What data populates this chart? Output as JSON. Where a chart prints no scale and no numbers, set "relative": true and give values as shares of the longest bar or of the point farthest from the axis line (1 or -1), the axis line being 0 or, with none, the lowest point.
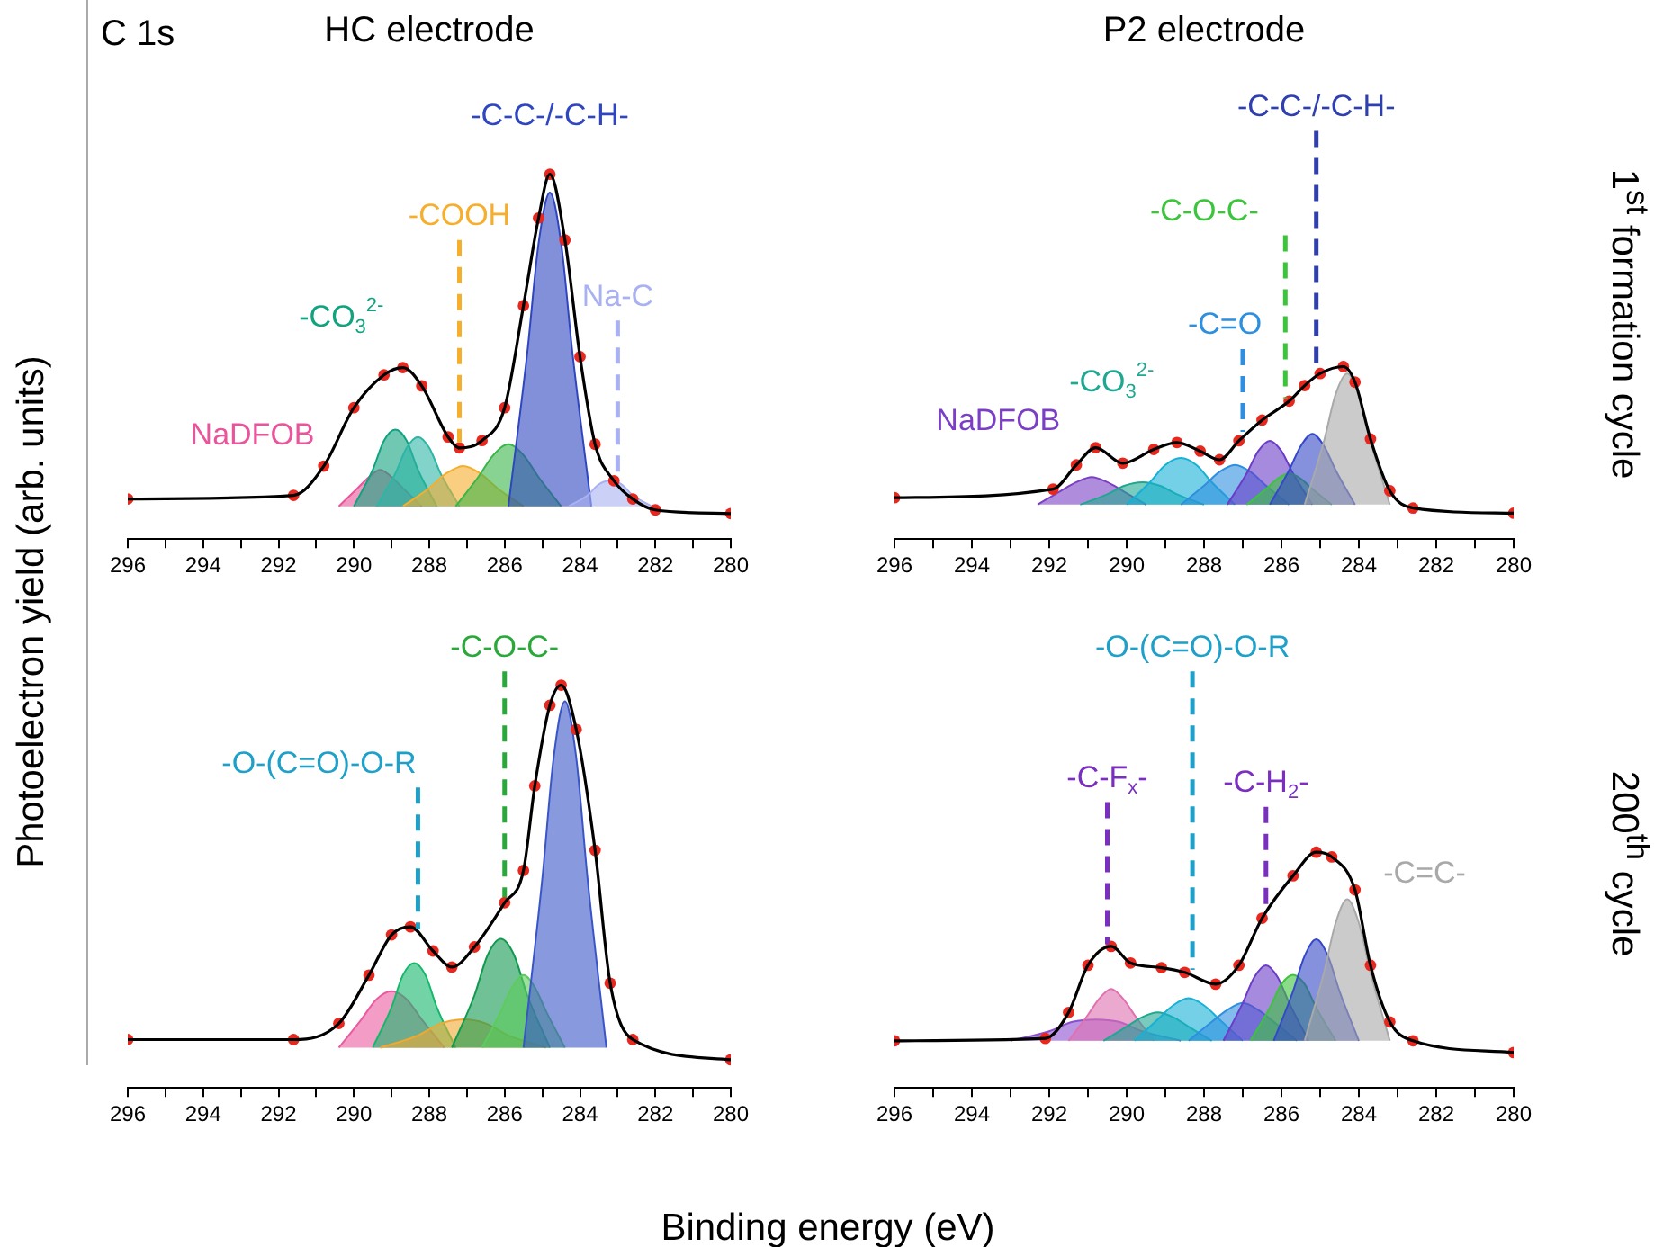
{
  "chart_data": [
    {
      "type": "area",
      "title": "HC electrode",
      "ylabel": "Photoelectron yield (arb. units)",
      "relative": true,
      "legend": false,
      "xlim": [
        296,
        280
      ],
      "xticks": [
        296,
        {
          "value": 295,
          "label": null
        },
        294,
        {
          "value": 293,
          "label": null
        },
        292,
        {
          "value": 291,
          "label": null
        },
        290,
        {
          "value": 289,
          "label": null
        },
        288,
        {
          "value": 287,
          "label": null
        },
        286,
        {
          "value": 285,
          "label": null
        },
        284,
        {
          "value": 283,
          "label": null
        },
        282,
        {
          "value": 281,
          "label": null
        },
        280
      ],
      "annotations": [
        "C 1s"
      ],
      "ref_lines": [
        {
          "axis": "x",
          "value": 287.2,
          "label": "-COOH",
          "color": "#f6ae2d",
          "line_style": "dashed"
        },
        {
          "axis": "x",
          "value": 283.0,
          "label": "Na-C",
          "color": "#a9b1f2",
          "line_style": "dashed"
        }
      ],
      "series": [
        {
          "name": "NaDFOB",
          "color": "#e8559b",
          "x": [
            290.4,
            289.9,
            289.6,
            289.3,
            289.0,
            288.7,
            288.2
          ],
          "values": [
            0.09,
            0.14,
            0.17,
            0.19,
            0.17,
            0.14,
            0.09
          ]
        },
        {
          "name": "-CO$_{3}$$^{2-}$",
          "color": "#11a37f",
          "x": [
            290.0,
            289.5,
            289.2,
            288.9,
            288.6,
            288.3,
            287.8
          ],
          "values": [
            0.09,
            0.19,
            0.27,
            0.3,
            0.27,
            0.19,
            0.09
          ]
        },
        {
          "color": "#2fb5a6",
          "x": [
            289.4,
            288.9,
            288.6,
            288.3,
            288.0,
            287.7,
            287.2
          ],
          "values": [
            0.09,
            0.18,
            0.25,
            0.28,
            0.25,
            0.18,
            0.09
          ]
        },
        {
          "color": "#f6ae2d",
          "x": [
            288.7,
            288.0,
            287.55,
            287.1,
            286.65,
            286.2,
            285.5
          ],
          "values": [
            0.09,
            0.14,
            0.18,
            0.2,
            0.18,
            0.14,
            0.09
          ]
        },
        {
          "color": "#3ab54a",
          "x": [
            287.3,
            286.7,
            286.3,
            285.9,
            285.5,
            285.1,
            284.5
          ],
          "values": [
            0.09,
            0.17,
            0.23,
            0.26,
            0.23,
            0.17,
            0.09
          ]
        },
        {
          "name": "-C-C-/-C-H-",
          "color": "#2f46c0",
          "x": [
            285.9,
            285.4,
            285.1,
            284.8,
            284.5,
            284.2,
            283.7
          ],
          "values": [
            0.09,
            0.51,
            0.81,
            0.95,
            0.81,
            0.51,
            0.09
          ]
        },
        {
          "color": "#a9b1f2",
          "x": [
            284.3,
            283.8,
            283.5,
            283.2,
            282.9,
            282.6,
            282.1
          ],
          "values": [
            0.09,
            0.12,
            0.15,
            0.16,
            0.15,
            0.12,
            0.09
          ]
        },
        {
          "type": "scatter",
          "marker": "circle",
          "color": "#e8281e",
          "x": [
            296,
            291.6,
            290.8,
            290.0,
            289.2,
            288.7,
            288.2,
            287.5,
            287.2,
            286.6,
            286.0,
            285.5,
            285.1,
            284.8,
            284.4,
            284.0,
            283.6,
            283.1,
            282.6,
            282.0,
            280
          ],
          "values": [
            0.11,
            0.12,
            0.2,
            0.36,
            0.45,
            0.47,
            0.42,
            0.28,
            0.25,
            0.27,
            0.36,
            0.64,
            0.88,
            1.0,
            0.82,
            0.5,
            0.26,
            0.16,
            0.11,
            0.08,
            0.07
          ]
        },
        {
          "type": "line",
          "color": "#000000",
          "x": [
            296,
            291.6,
            290.8,
            290.0,
            289.2,
            288.7,
            288.2,
            287.5,
            287.2,
            286.6,
            286.0,
            285.5,
            285.1,
            284.8,
            284.4,
            284.0,
            283.6,
            283.1,
            282.6,
            282.0,
            280
          ],
          "values": [
            0.11,
            0.12,
            0.2,
            0.36,
            0.45,
            0.47,
            0.42,
            0.28,
            0.25,
            0.27,
            0.36,
            0.64,
            0.88,
            1.0,
            0.82,
            0.5,
            0.26,
            0.16,
            0.11,
            0.08,
            0.07
          ]
        }
      ]
    },
    {
      "type": "area",
      "title": "P2 electrode",
      "y2label": "1$^{st}$ formation cycle",
      "relative": true,
      "legend": false,
      "xlim": [
        296,
        280
      ],
      "xticks": [
        296,
        {
          "value": 295,
          "label": null
        },
        294,
        {
          "value": 293,
          "label": null
        },
        292,
        {
          "value": 291,
          "label": null
        },
        290,
        {
          "value": 289,
          "label": null
        },
        288,
        {
          "value": 287,
          "label": null
        },
        286,
        {
          "value": 285,
          "label": null
        },
        284,
        {
          "value": 283,
          "label": null
        },
        282,
        {
          "value": 281,
          "label": null
        },
        280
      ],
      "ref_lines": [
        {
          "axis": "x",
          "value": 287.0,
          "label": "-C=O",
          "color": "#2e8fe0",
          "line_style": "dashed"
        },
        {
          "axis": "x",
          "value": 285.9,
          "label": "-C-O-C-",
          "color": "#3cc43c",
          "line_style": "dashed"
        },
        {
          "axis": "x",
          "value": 285.1,
          "label": "-C-C-/-C-H-",
          "color": "#2f3fb0",
          "line_style": "dashed"
        }
      ],
      "series": [
        {
          "name": "NaDFOB",
          "color": "#7a3fc4",
          "x": [
            292.3,
            291.7,
            291.3,
            290.9,
            290.5,
            290.1,
            289.5
          ],
          "values": [
            0.2,
            0.28,
            0.33,
            0.36,
            0.33,
            0.28,
            0.2
          ]
        },
        {
          "name": "-CO$_{3}$$^{2-}$",
          "color": "#1fa891",
          "x": [
            291.2,
            290.5,
            290.05,
            289.6,
            289.15,
            288.7,
            288.0
          ],
          "values": [
            0.2,
            0.26,
            0.31,
            0.33,
            0.31,
            0.26,
            0.2
          ]
        },
        {
          "color": "#17b0d6",
          "x": [
            290.0,
            289.4,
            289.0,
            288.6,
            288.2,
            287.8,
            287.2
          ],
          "values": [
            0.2,
            0.33,
            0.43,
            0.47,
            0.43,
            0.33,
            0.2
          ]
        },
        {
          "color": "#2e8fe0",
          "x": [
            288.6,
            288.0,
            287.6,
            287.2,
            286.8,
            286.4,
            285.8
          ],
          "values": [
            0.2,
            0.31,
            0.39,
            0.43,
            0.39,
            0.31,
            0.2
          ]
        },
        {
          "color": "#6a3cc8",
          "x": [
            287.4,
            286.9,
            286.6,
            286.3,
            286.0,
            285.7,
            285.2
          ],
          "values": [
            0.2,
            0.38,
            0.51,
            0.57,
            0.51,
            0.38,
            0.2
          ]
        },
        {
          "color": "#3cc43c",
          "x": [
            286.9,
            286.4,
            286.1,
            285.8,
            285.5,
            285.2,
            284.7
          ],
          "values": [
            0.2,
            0.29,
            0.35,
            0.38,
            0.35,
            0.29,
            0.2
          ]
        },
        {
          "color": "#3548c8",
          "x": [
            286.3,
            285.8,
            285.5,
            285.2,
            284.9,
            284.6,
            284.1
          ],
          "values": [
            0.2,
            0.4,
            0.54,
            0.61,
            0.54,
            0.4,
            0.2
          ]
        },
        {
          "color": "#a9a9a9",
          "x": [
            285.4,
            284.9,
            284.6,
            284.3,
            284.0,
            283.7,
            283.2
          ],
          "values": [
            0.2,
            0.57,
            0.84,
            0.96,
            0.84,
            0.57,
            0.2
          ]
        },
        {
          "type": "scatter",
          "marker": "circle",
          "color": "#e8281e",
          "x": [
            296,
            291.9,
            291.3,
            290.8,
            290.1,
            289.3,
            288.7,
            288.1,
            287.6,
            287.1,
            286.5,
            285.8,
            285.4,
            285.0,
            284.4,
            284.1,
            283.7,
            283.2,
            282.6,
            280
          ],
          "values": [
            0.24,
            0.29,
            0.43,
            0.53,
            0.44,
            0.52,
            0.56,
            0.51,
            0.46,
            0.57,
            0.69,
            0.8,
            0.89,
            0.96,
            1.0,
            0.91,
            0.58,
            0.28,
            0.18,
            0.15
          ]
        },
        {
          "type": "line",
          "color": "#000000",
          "x": [
            296,
            291.9,
            291.3,
            290.8,
            290.1,
            289.3,
            288.7,
            288.1,
            287.6,
            287.1,
            286.5,
            285.8,
            285.4,
            285.0,
            284.4,
            284.1,
            283.7,
            283.2,
            282.6,
            280
          ],
          "values": [
            0.24,
            0.29,
            0.43,
            0.53,
            0.44,
            0.52,
            0.56,
            0.51,
            0.46,
            0.57,
            0.69,
            0.8,
            0.89,
            0.96,
            1.0,
            0.91,
            0.58,
            0.28,
            0.18,
            0.15
          ]
        }
      ]
    },
    {
      "type": "area",
      "xlabel": "Binding energy (eV)",
      "relative": true,
      "legend": false,
      "xlim": [
        296,
        280
      ],
      "xticks": [
        296,
        {
          "value": 295,
          "label": null
        },
        294,
        {
          "value": 293,
          "label": null
        },
        292,
        {
          "value": 291,
          "label": null
        },
        290,
        {
          "value": 289,
          "label": null
        },
        288,
        {
          "value": 287,
          "label": null
        },
        286,
        {
          "value": 285,
          "label": null
        },
        284,
        {
          "value": 283,
          "label": null
        },
        282,
        {
          "value": 281,
          "label": null
        },
        280
      ],
      "ref_lines": [
        {
          "axis": "x",
          "value": 288.3,
          "label": "-O-(C=O)-O-R",
          "color": "#1ea0c8",
          "line_style": "dashed"
        },
        {
          "axis": "x",
          "value": 286.0,
          "label": "-C-O-C-",
          "color": "#2aa83a",
          "line_style": "dashed"
        }
      ],
      "series": [
        {
          "color": "#ea5aa0",
          "x": [
            290.4,
            289.8,
            289.4,
            289.0,
            288.6,
            288.2,
            287.6
          ],
          "values": [
            0.1,
            0.17,
            0.22,
            0.24,
            0.22,
            0.17,
            0.1
          ]
        },
        {
          "color": "#14b86a",
          "x": [
            289.5,
            289.0,
            288.7,
            288.4,
            288.1,
            287.8,
            287.3
          ],
          "values": [
            0.1,
            0.2,
            0.28,
            0.31,
            0.28,
            0.2,
            0.1
          ]
        },
        {
          "color": "#f0a830",
          "x": [
            289.3,
            288.3,
            287.7,
            287.1,
            286.5,
            285.9,
            284.9
          ],
          "values": [
            0.1,
            0.13,
            0.16,
            0.17,
            0.16,
            0.13,
            0.1
          ]
        },
        {
          "color": "#109a50",
          "x": [
            287.4,
            286.8,
            286.45,
            286.1,
            285.75,
            285.4,
            284.8
          ],
          "values": [
            0.1,
            0.23,
            0.33,
            0.37,
            0.33,
            0.23,
            0.1
          ]
        },
        {
          "color": "#5ccc5c",
          "x": [
            286.6,
            286.1,
            285.8,
            285.5,
            285.2,
            284.9,
            284.4
          ],
          "values": [
            0.1,
            0.19,
            0.25,
            0.28,
            0.25,
            0.19,
            0.1
          ]
        },
        {
          "color": "#3a55c8",
          "x": [
            285.5,
            285.0,
            284.7,
            284.4,
            284.1,
            283.8,
            283.3
          ],
          "values": [
            0.1,
            0.52,
            0.82,
            0.96,
            0.82,
            0.52,
            0.1
          ]
        },
        {
          "type": "scatter",
          "marker": "circle",
          "color": "#e8281e",
          "x": [
            296,
            291.6,
            290.4,
            289.6,
            289.0,
            288.5,
            287.9,
            287.4,
            286.8,
            286.0,
            285.5,
            285.2,
            284.8,
            284.5,
            284.1,
            283.6,
            283.2,
            282.6,
            280
          ],
          "values": [
            0.12,
            0.12,
            0.16,
            0.28,
            0.38,
            0.4,
            0.34,
            0.3,
            0.35,
            0.46,
            0.54,
            0.75,
            0.95,
            1.0,
            0.89,
            0.59,
            0.26,
            0.12,
            0.07
          ]
        },
        {
          "type": "line",
          "color": "#000000",
          "x": [
            296,
            291.6,
            290.4,
            289.6,
            289.0,
            288.5,
            287.9,
            287.4,
            286.8,
            286.0,
            285.5,
            285.2,
            284.8,
            284.5,
            284.1,
            283.6,
            283.2,
            282.6,
            280
          ],
          "values": [
            0.12,
            0.12,
            0.16,
            0.28,
            0.38,
            0.4,
            0.34,
            0.3,
            0.35,
            0.46,
            0.54,
            0.75,
            0.95,
            1.0,
            0.89,
            0.59,
            0.26,
            0.12,
            0.07
          ]
        }
      ]
    },
    {
      "type": "area",
      "y2label": "200$^{th}$ cycle",
      "relative": true,
      "legend": false,
      "xlim": [
        296,
        280
      ],
      "xticks": [
        296,
        {
          "value": 295,
          "label": null
        },
        294,
        {
          "value": 293,
          "label": null
        },
        292,
        {
          "value": 291,
          "label": null
        },
        290,
        {
          "value": 289,
          "label": null
        },
        288,
        {
          "value": 287,
          "label": null
        },
        286,
        {
          "value": 285,
          "label": null
        },
        284,
        {
          "value": 283,
          "label": null
        },
        282,
        {
          "value": 281,
          "label": null
        },
        280
      ],
      "ref_lines": [
        {
          "axis": "x",
          "value": 290.5,
          "label": "-C-F$_{x}$-",
          "color": "#7a2fc0",
          "line_style": "dashed"
        },
        {
          "axis": "x",
          "value": 288.3,
          "label": "-O-(C=O)-O-R",
          "color": "#1ea0c8",
          "line_style": "dashed"
        },
        {
          "axis": "x",
          "value": 286.4,
          "label": "-C-H$_{2}$-",
          "color": "#7a2fc0",
          "line_style": "dashed"
        }
      ],
      "series": [
        {
          "color": "#8a4fd0",
          "x": [
            293.0,
            292.0,
            291.4,
            290.8,
            290.2,
            289.6,
            288.6
          ],
          "values": [
            0.2,
            0.24,
            0.28,
            0.29,
            0.28,
            0.24,
            0.2
          ]
        },
        {
          "color": "#e070b0",
          "x": [
            291.5,
            291.0,
            290.7,
            290.4,
            290.1,
            289.8,
            289.3
          ],
          "values": [
            0.2,
            0.31,
            0.38,
            0.42,
            0.38,
            0.31,
            0.2
          ]
        },
        {
          "color": "#1fa891",
          "x": [
            290.6,
            290.0,
            289.6,
            289.2,
            288.8,
            288.4,
            287.8
          ],
          "values": [
            0.2,
            0.26,
            0.3,
            0.32,
            0.3,
            0.26,
            0.2
          ]
        },
        {
          "color": "#17b0d6",
          "x": [
            289.8,
            289.2,
            288.8,
            288.4,
            288.0,
            287.6,
            287.0
          ],
          "values": [
            0.2,
            0.29,
            0.35,
            0.38,
            0.35,
            0.29,
            0.2
          ]
        },
        {
          "color": "#2e8fe0",
          "x": [
            288.4,
            287.8,
            287.4,
            287.0,
            286.6,
            286.2,
            285.6
          ],
          "values": [
            0.2,
            0.28,
            0.33,
            0.36,
            0.33,
            0.28,
            0.2
          ]
        },
        {
          "color": "#6a3cc8",
          "x": [
            287.5,
            287.0,
            286.7,
            286.4,
            286.1,
            285.8,
            285.3
          ],
          "values": [
            0.2,
            0.36,
            0.47,
            0.52,
            0.47,
            0.36,
            0.2
          ]
        },
        {
          "color": "#3cc43c",
          "x": [
            286.8,
            286.3,
            286.0,
            285.7,
            285.4,
            285.1,
            284.6
          ],
          "values": [
            0.2,
            0.34,
            0.44,
            0.48,
            0.44,
            0.34,
            0.2
          ]
        },
        {
          "color": "#3548c8",
          "x": [
            286.2,
            285.7,
            285.4,
            285.1,
            284.8,
            284.5,
            284.0
          ],
          "values": [
            0.2,
            0.41,
            0.56,
            0.63,
            0.56,
            0.41,
            0.2
          ]
        },
        {
          "name": "-C=C-",
          "color": "#a9a9a9",
          "x": [
            285.4,
            284.9,
            284.6,
            284.3,
            284.0,
            283.7,
            283.2
          ],
          "values": [
            0.2,
            0.49,
            0.7,
            0.8,
            0.7,
            0.49,
            0.2
          ]
        },
        {
          "type": "scatter",
          "marker": "circle",
          "color": "#e8281e",
          "x": [
            296,
            292.1,
            291.5,
            291.0,
            290.4,
            289.9,
            289.1,
            288.5,
            287.7,
            287.1,
            286.5,
            285.7,
            285.1,
            284.7,
            284.1,
            283.7,
            283.2,
            282.6,
            280
          ],
          "values": [
            0.2,
            0.21,
            0.32,
            0.52,
            0.6,
            0.53,
            0.51,
            0.49,
            0.44,
            0.52,
            0.72,
            0.9,
            1.0,
            0.98,
            0.84,
            0.52,
            0.28,
            0.2,
            0.15
          ]
        },
        {
          "type": "line",
          "color": "#000000",
          "x": [
            296,
            292.1,
            291.5,
            291.0,
            290.4,
            289.9,
            289.1,
            288.5,
            287.7,
            287.1,
            286.5,
            285.7,
            285.1,
            284.7,
            284.1,
            283.7,
            283.2,
            282.6,
            280
          ],
          "values": [
            0.2,
            0.21,
            0.32,
            0.52,
            0.6,
            0.53,
            0.51,
            0.49,
            0.44,
            0.52,
            0.72,
            0.9,
            1.0,
            0.98,
            0.84,
            0.52,
            0.28,
            0.2,
            0.15
          ]
        }
      ]
    }
  ]
}
